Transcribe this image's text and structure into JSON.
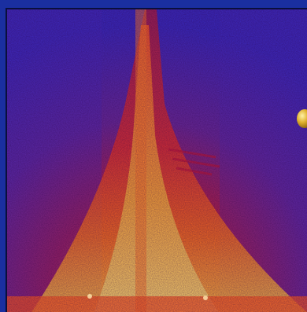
{
  "image": {
    "subject": "",
    "colors": {
      "border": "#1a2fa0",
      "background": "#3b2bb8",
      "hot": "#f6c93c",
      "warm": "#ef3b1f",
      "cool": "#8a1f7d"
    },
    "icons": [
      "yellow-sphere-icon"
    ]
  }
}
